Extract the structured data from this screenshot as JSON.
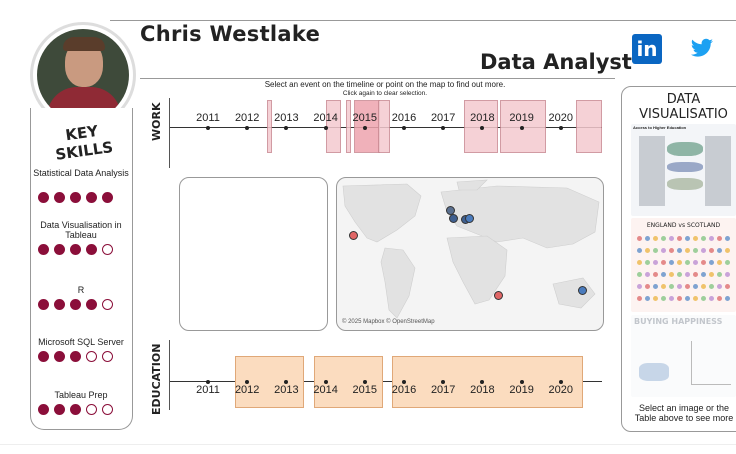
{
  "header": {
    "name": "Chris Westlake",
    "title": "Data Analyst"
  },
  "social": [
    "linkedin-icon",
    "twitter-icon"
  ],
  "colors": {
    "accent": "#8b0f3a",
    "work": "#f4c9cf",
    "education": "#fbdcbf",
    "map_pin_red": "#e06666",
    "map_pin_blue": "#4a7bbd"
  },
  "skills": {
    "heading": "KEY SKILLS",
    "items": [
      {
        "name": "Statistical Data Analysis",
        "level": 5
      },
      {
        "name": "Data Visualisation in Tableau",
        "level": 4
      },
      {
        "name": "R",
        "level": 4
      },
      {
        "name": "Microsoft SQL Server",
        "level": 3
      },
      {
        "name": "Tableau Prep",
        "level": 3
      }
    ]
  },
  "timeline": {
    "instruction": "Select an event on the timeline or point on the map to find out more.",
    "subinstruction": "Click again to clear selection.",
    "work_label": "WORK",
    "education_label": "EDUCATION",
    "years": [
      "2011",
      "2012",
      "2013",
      "2014",
      "2015",
      "2016",
      "2017",
      "2018",
      "2019",
      "2020"
    ]
  },
  "map": {
    "attribution": "© 2025 Mapbox © OpenStreetMap"
  },
  "gallery": {
    "title": "DATA VISUALISATIO",
    "items": [
      "Access to Higher Education",
      "ENGLAND vs SCOTLAND",
      "BUYING HAPPINESS"
    ],
    "footer": "Select an image or the Table above to see more"
  }
}
